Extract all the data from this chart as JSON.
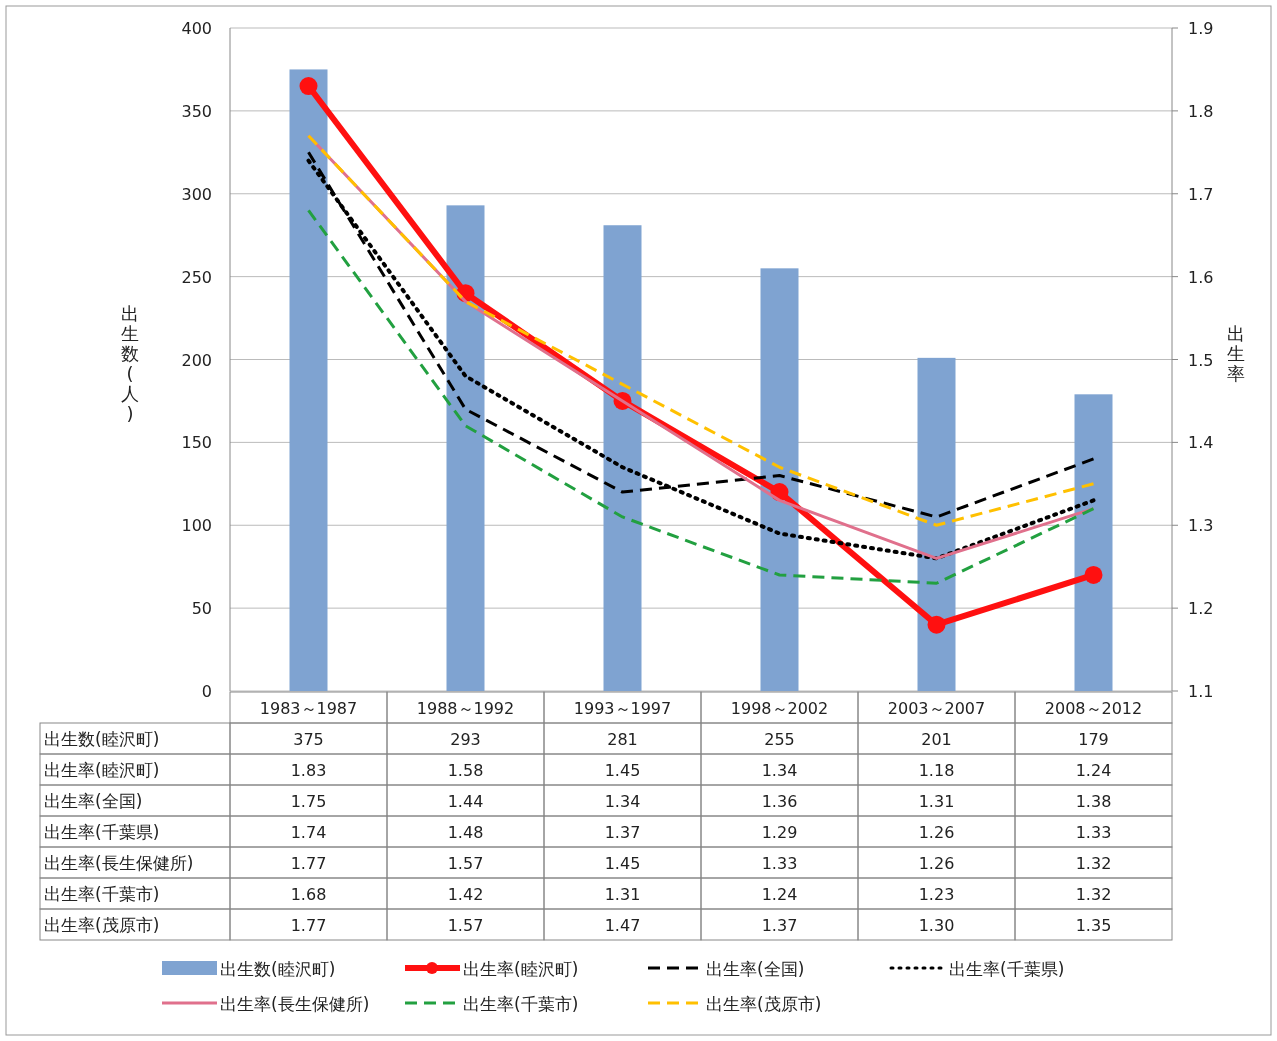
{
  "chart_data": {
    "type": "bar",
    "categories": [
      "1983～1987",
      "1988～1992",
      "1993～1997",
      "1998～2002",
      "2003～2007",
      "2008～2012"
    ],
    "ylabel": "出生数(人)",
    "y2label": "出生率",
    "ylim": [
      0,
      400
    ],
    "yticks": [
      0,
      50,
      100,
      150,
      200,
      250,
      300,
      350,
      400
    ],
    "y2lim": [
      1.1,
      1.9
    ],
    "y2ticks": [
      {
        "value": 1.1,
        "label": "1.1"
      },
      {
        "value": 1.2,
        "label": "1.2"
      },
      {
        "value": 1.3,
        "label": "1.3"
      },
      {
        "value": 1.4,
        "label": "1.4"
      },
      {
        "value": 1.5,
        "label": "1.5"
      },
      {
        "value": 1.6,
        "label": "1.6"
      },
      {
        "value": 1.7,
        "label": "1.7"
      },
      {
        "value": 1.8,
        "label": "1.8"
      },
      {
        "value": 1.9,
        "label": "1.9"
      }
    ],
    "grid": "y",
    "legend": "bottom",
    "data_labels": true,
    "series": [
      {
        "name": "出生数(睦沢町)",
        "type": "bar",
        "color": "#7fa3d1",
        "values": [
          375,
          293,
          281,
          255,
          201,
          179
        ]
      },
      {
        "name": "出生率(睦沢町)",
        "type": "line",
        "axis": "y2",
        "color": "#ff1010",
        "marker": "circle",
        "line_style": "solid",
        "values": [
          1.83,
          1.58,
          1.45,
          1.34,
          1.18,
          1.24
        ]
      },
      {
        "name": "出生率(全国)",
        "type": "line",
        "axis": "y2",
        "color": "#000000",
        "marker": "none",
        "line_style": "dashed",
        "values": [
          1.75,
          1.44,
          1.34,
          1.36,
          1.31,
          1.38
        ]
      },
      {
        "name": "出生率(千葉県)",
        "type": "line",
        "axis": "y2",
        "color": "#000000",
        "marker": "none",
        "line_style": "dotted",
        "values": [
          1.74,
          1.48,
          1.37,
          1.29,
          1.26,
          1.33
        ]
      },
      {
        "name": "出生率(長生保健所)",
        "type": "line",
        "axis": "y2",
        "color": "#e0708c",
        "marker": "none",
        "line_style": "solid",
        "values": [
          1.77,
          1.57,
          1.45,
          1.33,
          1.26,
          1.32
        ]
      },
      {
        "name": "出生率(千葉市)",
        "type": "line",
        "axis": "y2",
        "color": "#22a040",
        "marker": "none",
        "line_style": "dashed",
        "values": [
          1.68,
          1.42,
          1.31,
          1.24,
          1.23,
          1.32
        ]
      },
      {
        "name": "出生率(茂原市)",
        "type": "line",
        "axis": "y2",
        "color": "#ffc000",
        "marker": "none",
        "line_style": "dashed",
        "values": [
          1.77,
          1.57,
          1.47,
          1.37,
          1.3,
          1.35
        ],
        "value_labels": [
          "1.77",
          "1.57",
          "1.47",
          "1.37",
          "1.30",
          "1.35"
        ]
      }
    ]
  }
}
